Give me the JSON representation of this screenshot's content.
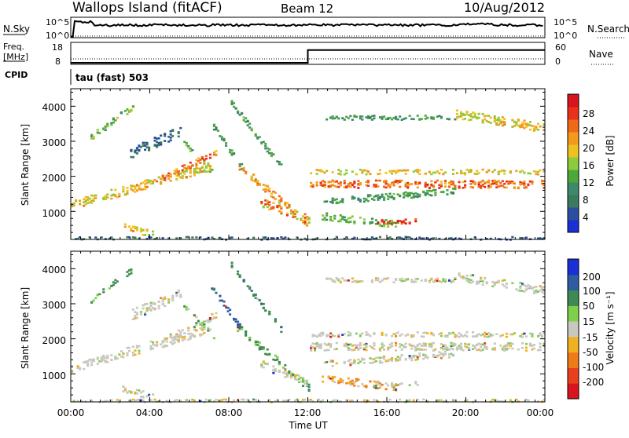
{
  "header": {
    "title": "Wallops Island (fitACF)",
    "beam": "Beam 12",
    "date": "10/Aug/2012"
  },
  "noise_panel": {
    "left_label": "N.Sky",
    "right_label": "N.Search",
    "left_ticks": [
      "10^5",
      "10^0"
    ],
    "right_ticks": [
      "10^5",
      "10^0"
    ]
  },
  "freq_panel": {
    "left_label_1": "Freq.",
    "left_label_2": "[MHz]",
    "right_label": "Nave",
    "left_ticks": [
      "18",
      "8"
    ],
    "right_ticks": [
      "60",
      "0"
    ],
    "cpid_label": "CPID",
    "cpid_value": "tau (fast) 503"
  },
  "colors": {
    "power": [
      "#1a2fd6",
      "#2b4f9e",
      "#3a7a5e",
      "#3d8a6a",
      "#4ca83a",
      "#8ccc3a",
      "#f0c020",
      "#f29a1c",
      "#ef6a18",
      "#e8301c",
      "#d8141c"
    ],
    "velocity": [
      "#1a2fd6",
      "#2f5ca0",
      "#3e8a52",
      "#7ed04a",
      "#c8c8c0",
      "#f0b020",
      "#ef7a18",
      "#e8401c",
      "#d8141c"
    ]
  },
  "chart_data": [
    {
      "type": "heatmap",
      "name": "power",
      "ylabel": "Slant Range [km]",
      "yticks": [
        "1000",
        "2000",
        "3000",
        "4000"
      ],
      "ylim": [
        200,
        4500
      ],
      "xlim": [
        0,
        24
      ],
      "colorbar_label": "Power [dB]",
      "colorbar_ticks": [
        "4",
        "8",
        "12",
        "16",
        "20",
        "24",
        "28"
      ]
    },
    {
      "type": "heatmap",
      "name": "velocity",
      "ylabel": "Slant Range [km]",
      "yticks": [
        "1000",
        "2000",
        "3000",
        "4000"
      ],
      "ylim": [
        200,
        4500
      ],
      "xlim": [
        0,
        24
      ],
      "colorbar_label": "Velocity [m s⁻¹]",
      "colorbar_ticks": [
        "200",
        "100",
        "50",
        "15",
        "-15",
        "-50",
        "-100",
        "-200"
      ]
    }
  ],
  "xaxis": {
    "label": "Time UT",
    "ticks": [
      "00:00",
      "04:00",
      "08:00",
      "12:00",
      "16:00",
      "20:00",
      "00:00"
    ]
  }
}
